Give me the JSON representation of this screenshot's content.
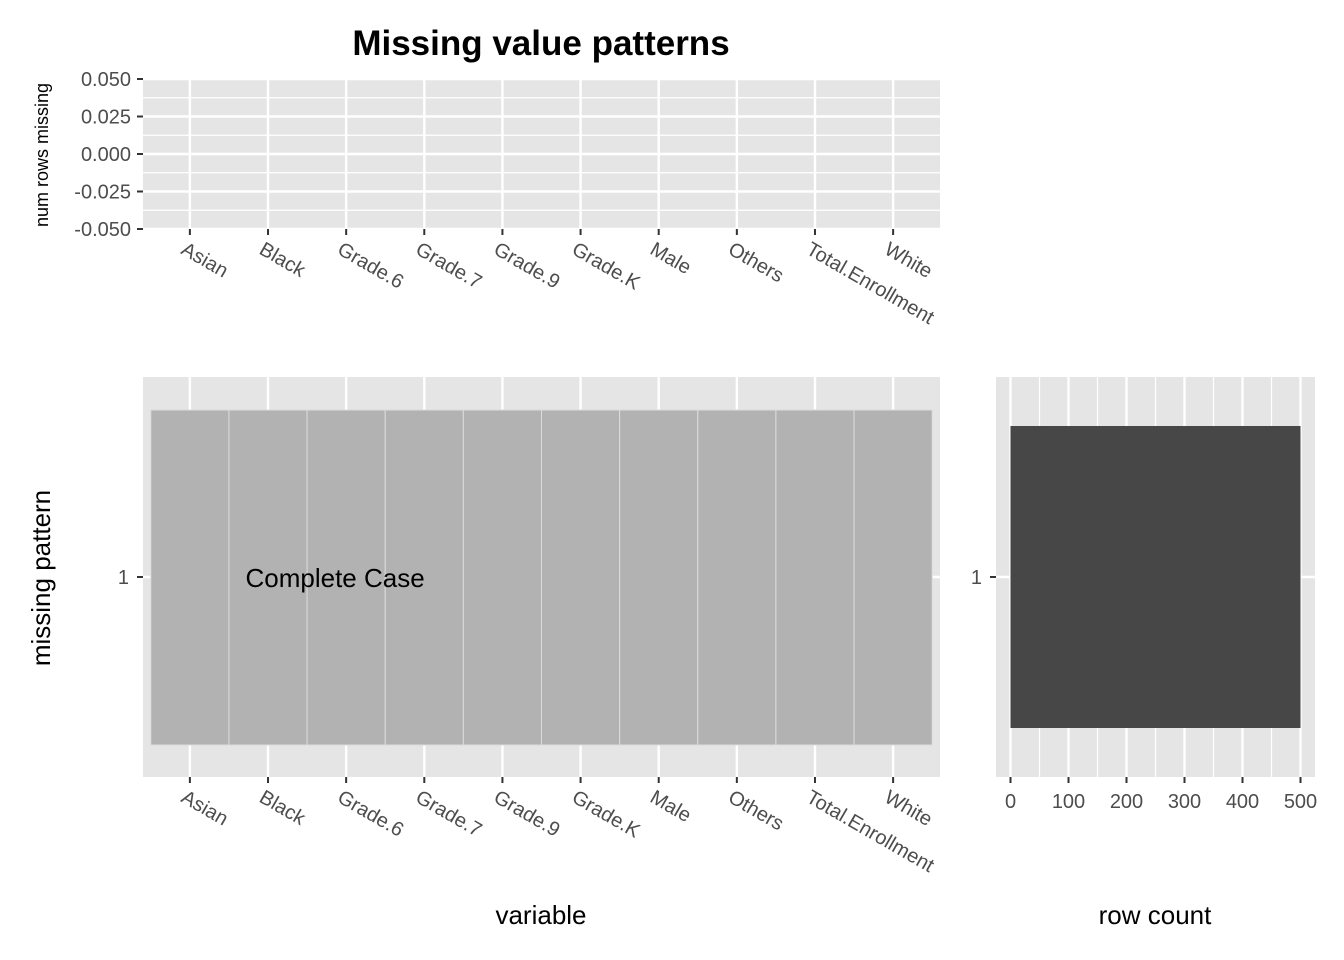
{
  "chart_data": [
    {
      "type": "bar",
      "title": "Missing value patterns",
      "xlabel": "",
      "ylabel": "num rows missing",
      "categories": [
        "Asian",
        "Black",
        "Grade.6",
        "Grade.7",
        "Grade.9",
        "Grade.K",
        "Male",
        "Others",
        "Total.Enrollment",
        "White"
      ],
      "values": [
        0,
        0,
        0,
        0,
        0,
        0,
        0,
        0,
        0,
        0
      ],
      "ylim": [
        -0.05,
        0.05
      ],
      "yticks": [
        "0.050",
        "0.025",
        "0.000",
        "-0.025",
        "-0.050"
      ],
      "grid": true
    },
    {
      "type": "heatmap",
      "xlabel": "variable",
      "ylabel": "missing pattern",
      "categories": [
        "Asian",
        "Black",
        "Grade.6",
        "Grade.7",
        "Grade.9",
        "Grade.K",
        "Male",
        "Others",
        "Total.Enrollment",
        "White"
      ],
      "rows": [
        "1"
      ],
      "values": [
        [
          false,
          false,
          false,
          false,
          false,
          false,
          false,
          false,
          false,
          false
        ]
      ],
      "annotation": "Complete Case",
      "colors": {
        "observed": "#b2b2b2",
        "missing": "#e68aa8"
      },
      "grid": true
    },
    {
      "type": "bar",
      "orientation": "horizontal",
      "xlabel": "row count",
      "categories": [
        "1"
      ],
      "values": [
        500
      ],
      "xlim": [
        -25,
        525
      ],
      "xticks": [
        0,
        100,
        200,
        300,
        400,
        500
      ],
      "colors": {
        "bar": "#474747"
      },
      "grid": true
    }
  ]
}
